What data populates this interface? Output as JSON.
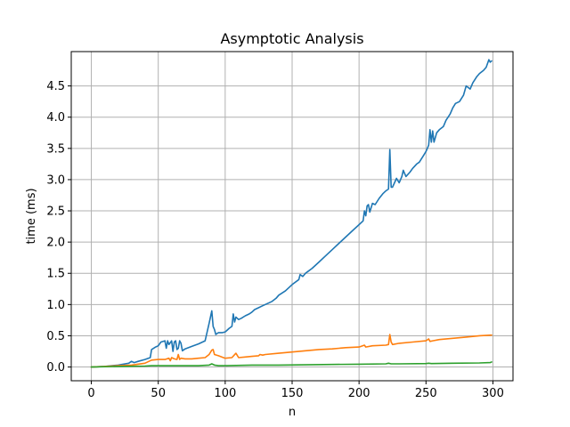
{
  "chart_data": {
    "type": "line",
    "title": "Asymptotic Analysis",
    "xlabel": "n",
    "ylabel": "time (ms)",
    "xlim": [
      -15,
      315
    ],
    "ylim": [
      -0.22,
      5.05
    ],
    "xticks": [
      0,
      50,
      100,
      150,
      200,
      250,
      300
    ],
    "xtick_labels": [
      "0",
      "50",
      "100",
      "150",
      "200",
      "250",
      "300"
    ],
    "yticks": [
      0.0,
      0.5,
      1.0,
      1.5,
      2.0,
      2.5,
      3.0,
      3.5,
      4.0,
      4.5
    ],
    "ytick_labels": [
      "0.0",
      "0.5",
      "1.0",
      "1.5",
      "2.0",
      "2.5",
      "3.0",
      "3.5",
      "4.0",
      "4.5"
    ],
    "grid": true,
    "legend": null,
    "series": [
      {
        "color": "#1f77b4",
        "x": [
          0,
          10,
          20,
          28,
          30,
          32,
          35,
          40,
          44,
          45,
          48,
          50,
          52,
          55,
          56,
          57,
          58,
          60,
          61,
          62,
          63,
          64,
          65,
          66,
          67,
          68,
          70,
          75,
          80,
          85,
          88,
          90,
          91,
          92,
          93,
          95,
          98,
          100,
          103,
          105,
          106,
          107,
          108,
          110,
          112,
          115,
          118,
          120,
          122,
          125,
          128,
          130,
          135,
          138,
          140,
          145,
          150,
          155,
          156,
          158,
          160,
          165,
          170,
          175,
          180,
          185,
          190,
          195,
          200,
          203,
          204,
          205,
          206,
          207,
          208,
          210,
          212,
          215,
          218,
          220,
          222,
          223,
          224,
          225,
          228,
          230,
          232,
          233,
          235,
          238,
          240,
          243,
          245,
          248,
          250,
          252,
          253,
          254,
          255,
          256,
          258,
          260,
          263,
          265,
          268,
          270,
          272,
          275,
          278,
          280,
          283,
          285,
          288,
          290,
          293,
          295,
          297,
          298,
          299
        ],
        "y": [
          0.0,
          0.01,
          0.03,
          0.06,
          0.09,
          0.07,
          0.09,
          0.12,
          0.15,
          0.28,
          0.32,
          0.34,
          0.4,
          0.42,
          0.3,
          0.42,
          0.36,
          0.42,
          0.25,
          0.4,
          0.42,
          0.28,
          0.3,
          0.42,
          0.38,
          0.26,
          0.29,
          0.33,
          0.37,
          0.42,
          0.7,
          0.9,
          0.65,
          0.6,
          0.52,
          0.55,
          0.55,
          0.56,
          0.62,
          0.65,
          0.85,
          0.72,
          0.8,
          0.76,
          0.78,
          0.82,
          0.85,
          0.88,
          0.92,
          0.95,
          0.98,
          1.0,
          1.05,
          1.1,
          1.15,
          1.22,
          1.32,
          1.4,
          1.48,
          1.45,
          1.5,
          1.58,
          1.68,
          1.78,
          1.88,
          1.98,
          2.08,
          2.18,
          2.28,
          2.34,
          2.5,
          2.42,
          2.58,
          2.6,
          2.48,
          2.62,
          2.6,
          2.7,
          2.78,
          2.82,
          2.85,
          3.48,
          2.88,
          2.88,
          3.02,
          2.95,
          3.05,
          3.15,
          3.05,
          3.12,
          3.18,
          3.25,
          3.28,
          3.38,
          3.45,
          3.55,
          3.8,
          3.6,
          3.78,
          3.6,
          3.75,
          3.8,
          3.85,
          3.95,
          4.05,
          4.15,
          4.22,
          4.25,
          4.35,
          4.5,
          4.45,
          4.55,
          4.65,
          4.7,
          4.75,
          4.8,
          4.92,
          4.88,
          4.9
        ]
      },
      {
        "color": "#ff7f0e",
        "x": [
          0,
          10,
          20,
          30,
          40,
          45,
          50,
          55,
          58,
          59,
          60,
          62,
          64,
          65,
          66,
          67,
          70,
          75,
          80,
          85,
          88,
          90,
          91,
          92,
          95,
          100,
          105,
          108,
          110,
          115,
          120,
          125,
          126,
          128,
          130,
          140,
          150,
          160,
          170,
          180,
          190,
          200,
          204,
          205,
          210,
          220,
          222,
          223,
          224,
          225,
          230,
          240,
          250,
          252,
          253,
          255,
          260,
          270,
          280,
          290,
          299
        ],
        "y": [
          0.0,
          0.01,
          0.02,
          0.03,
          0.06,
          0.11,
          0.12,
          0.12,
          0.14,
          0.1,
          0.15,
          0.13,
          0.12,
          0.2,
          0.12,
          0.14,
          0.13,
          0.13,
          0.14,
          0.15,
          0.2,
          0.27,
          0.28,
          0.2,
          0.18,
          0.14,
          0.15,
          0.22,
          0.15,
          0.16,
          0.17,
          0.18,
          0.2,
          0.19,
          0.2,
          0.22,
          0.24,
          0.26,
          0.28,
          0.29,
          0.31,
          0.32,
          0.35,
          0.32,
          0.34,
          0.35,
          0.36,
          0.52,
          0.4,
          0.36,
          0.38,
          0.4,
          0.42,
          0.45,
          0.41,
          0.42,
          0.44,
          0.46,
          0.48,
          0.5,
          0.51
        ]
      },
      {
        "color": "#2ca02c",
        "x": [
          0,
          20,
          40,
          45,
          60,
          80,
          88,
          90,
          92,
          95,
          100,
          120,
          140,
          160,
          180,
          200,
          220,
          222,
          224,
          230,
          250,
          252,
          254,
          270,
          290,
          298,
          299
        ],
        "y": [
          0.0,
          0.01,
          0.015,
          0.02,
          0.02,
          0.02,
          0.03,
          0.05,
          0.03,
          0.02,
          0.02,
          0.03,
          0.03,
          0.035,
          0.04,
          0.045,
          0.05,
          0.06,
          0.05,
          0.05,
          0.055,
          0.06,
          0.055,
          0.06,
          0.065,
          0.07,
          0.08
        ]
      }
    ]
  }
}
